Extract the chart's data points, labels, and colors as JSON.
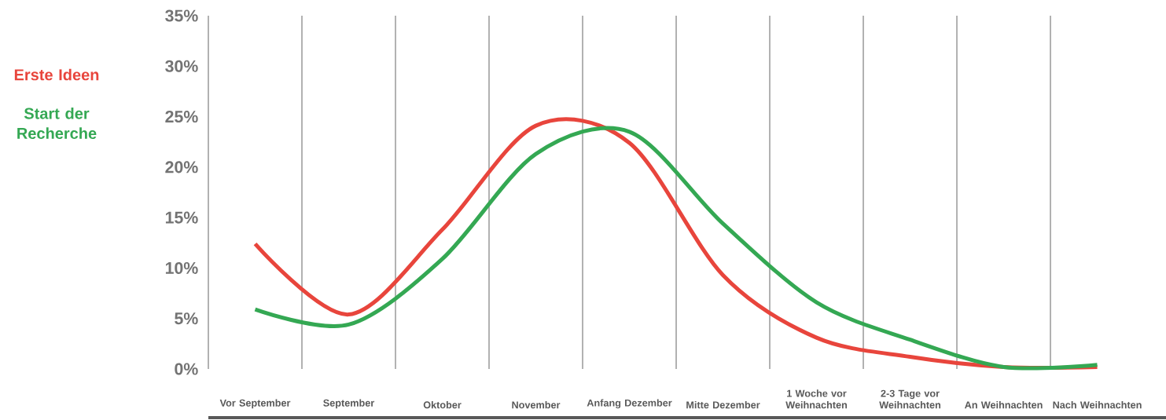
{
  "chart_data": {
    "type": "line",
    "categories": [
      "Vor September",
      "September",
      "Oktober",
      "November",
      "Anfang Dezember",
      "Mitte Dezember",
      "1 Woche vor Weihnachten",
      "2-3 Tage vor Weihnachten",
      "An Weihnachten",
      "Nach Weihnachten"
    ],
    "series": [
      {
        "name": "Erste Ideen",
        "color": "#e8453c",
        "values": [
          12.4,
          5.4,
          13.8,
          24.1,
          22.4,
          9.3,
          3.1,
          1.2,
          0.2,
          0.2
        ]
      },
      {
        "name": "Start der Recherche",
        "color": "#34a853",
        "values": [
          5.9,
          4.4,
          10.9,
          21.3,
          23.5,
          14.4,
          6.6,
          2.9,
          0.2,
          0.4
        ]
      }
    ],
    "ylim": [
      0,
      35
    ],
    "yticks": [
      {
        "value": 0,
        "label": "0%"
      },
      {
        "value": 5,
        "label": "5%"
      },
      {
        "value": 10,
        "label": "10%"
      },
      {
        "value": 15,
        "label": "15%"
      },
      {
        "value": 20,
        "label": "20%"
      },
      {
        "value": 25,
        "label": "25%"
      },
      {
        "value": 30,
        "label": "30%"
      },
      {
        "value": 35,
        "label": "35%"
      }
    ],
    "grid": "x",
    "legend": "left",
    "marker": "none",
    "line_style": "solid"
  }
}
